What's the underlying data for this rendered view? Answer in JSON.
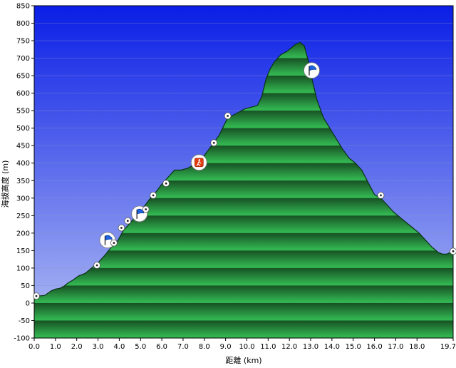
{
  "chart_data": {
    "type": "area",
    "title": "",
    "xlabel": "距離 (km)",
    "ylabel": "海拔高度 (m)",
    "xlim": [
      0,
      19.7
    ],
    "ylim": [
      -100,
      850
    ],
    "x_ticks": [
      0,
      1,
      2,
      3,
      4,
      5,
      6,
      7,
      8,
      9,
      10,
      11,
      12,
      13,
      14,
      15,
      16,
      17,
      18,
      19.7
    ],
    "x_tick_labels": [
      "0.0",
      "1.0",
      "2.0",
      "3.0",
      "4.0",
      "5.0",
      "6.0",
      "7.0",
      "8.0",
      "9.0",
      "10.0",
      "11.0",
      "12.0",
      "13.0",
      "14.0",
      "15.0",
      "16.0",
      "17.0",
      "18.0",
      "19.7"
    ],
    "y_ticks": [
      -100,
      -50,
      0,
      50,
      100,
      150,
      200,
      250,
      300,
      350,
      400,
      450,
      500,
      550,
      600,
      650,
      700,
      750,
      800,
      850
    ],
    "y_tick_labels": [
      "-100",
      "-50",
      "0",
      "50",
      "100",
      "150",
      "200",
      "250",
      "300",
      "350",
      "400",
      "450",
      "500",
      "550",
      "600",
      "650",
      "700",
      "750",
      "800",
      "850"
    ],
    "grid": true,
    "colors": {
      "sky_top": "#0a1ee6",
      "sky_bottom": "#b4c0f4",
      "fill_light": "#32b450",
      "fill_dark": "#145a28",
      "outline": "#0a3214"
    },
    "series": [
      {
        "x": [
          0.0,
          0.2,
          0.5,
          0.8,
          1.0,
          1.2,
          1.4,
          1.6,
          1.8,
          2.1,
          2.4,
          2.7,
          3.0,
          3.3,
          3.6,
          3.9,
          4.2,
          4.5,
          4.8,
          5.1,
          5.4,
          5.7,
          6.0,
          6.3,
          6.6,
          6.9,
          7.2,
          7.5,
          7.8,
          8.1,
          8.4,
          8.7,
          8.9,
          9.1,
          9.3,
          9.6,
          9.9,
          10.2,
          10.5,
          10.7,
          10.9,
          11.1,
          11.3,
          11.6,
          11.9,
          12.1,
          12.3,
          12.5,
          12.7,
          12.9,
          13.1,
          13.3,
          13.6,
          13.9,
          14.2,
          14.5,
          14.8,
          15.1,
          15.4,
          15.7,
          16.0,
          16.3,
          16.6,
          16.9,
          17.2,
          17.5,
          17.8,
          18.1,
          18.4,
          18.7,
          19.0,
          19.2,
          19.4,
          19.7
        ],
        "y": [
          20,
          20,
          22,
          35,
          40,
          42,
          48,
          58,
          65,
          78,
          85,
          100,
          115,
          135,
          158,
          175,
          208,
          228,
          250,
          270,
          295,
          315,
          340,
          360,
          380,
          380,
          385,
          395,
          405,
          430,
          455,
          480,
          505,
          530,
          535,
          545,
          555,
          560,
          565,
          590,
          640,
          670,
          690,
          710,
          720,
          730,
          740,
          745,
          735,
          690,
          630,
          580,
          530,
          500,
          470,
          440,
          415,
          400,
          380,
          345,
          310,
          300,
          280,
          260,
          245,
          230,
          215,
          200,
          180,
          160,
          145,
          140,
          140,
          148
        ]
      }
    ],
    "markers": [
      {
        "x": 0.1,
        "y": 20,
        "icon": "waypoint-dot-icon"
      },
      {
        "x": 2.95,
        "y": 108,
        "icon": "waypoint-dot-icon"
      },
      {
        "x": 3.45,
        "y": 180,
        "icon": "blue-flag-icon"
      },
      {
        "x": 3.75,
        "y": 172,
        "icon": "waypoint-dot-icon"
      },
      {
        "x": 4.1,
        "y": 215,
        "icon": "waypoint-dot-icon"
      },
      {
        "x": 4.4,
        "y": 235,
        "icon": "waypoint-dot-icon"
      },
      {
        "x": 4.95,
        "y": 255,
        "icon": "blue-flag-icon"
      },
      {
        "x": 5.25,
        "y": 268,
        "icon": "waypoint-dot-icon"
      },
      {
        "x": 5.6,
        "y": 308,
        "icon": "waypoint-dot-icon"
      },
      {
        "x": 6.2,
        "y": 342,
        "icon": "waypoint-dot-icon"
      },
      {
        "x": 7.75,
        "y": 402,
        "icon": "red-hiker-icon"
      },
      {
        "x": 8.45,
        "y": 458,
        "icon": "waypoint-dot-icon"
      },
      {
        "x": 9.1,
        "y": 535,
        "icon": "waypoint-dot-icon"
      },
      {
        "x": 13.05,
        "y": 665,
        "icon": "blue-flag-icon"
      },
      {
        "x": 16.3,
        "y": 308,
        "icon": "waypoint-dot-icon"
      },
      {
        "x": 19.7,
        "y": 148,
        "icon": "waypoint-dot-icon"
      }
    ]
  }
}
